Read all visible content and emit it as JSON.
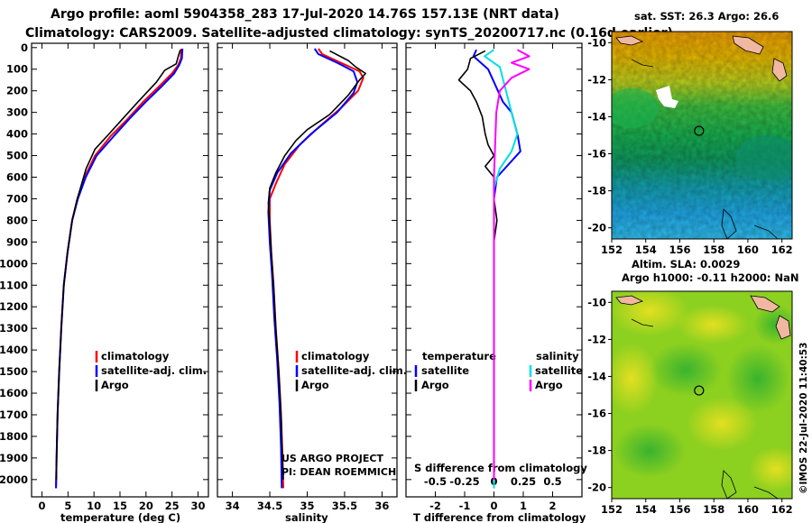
{
  "header": {
    "line1": "Argo profile: aoml 5904358_283 17-Jul-2020 14.76S 157.13E (NRT data)",
    "line2": "Climatology: CARS2009. Satellite-adjusted climatology: synTS_20200717.nc (0.16d earlier)"
  },
  "credits": {
    "project": "US ARGO PROJECT",
    "pi": "PI: DEAN ROEMMICH",
    "stamp": "©IMOS 22-Jul-2020 11:40:53"
  },
  "colors": {
    "climatology": "#ff0000",
    "satellite": "#0000ff",
    "argo": "#000000",
    "temp_satellite": "#0000ff",
    "sal_satellite": "#00e0e0",
    "sal_argo": "#ff00ff"
  },
  "chart_data": [
    {
      "type": "line",
      "title": "",
      "xlabel": "temperature (deg C)",
      "ylabel": "",
      "xlim": [
        -2,
        32
      ],
      "ylim": [
        2080,
        -20
      ],
      "xticks": [
        0,
        5,
        10,
        15,
        20,
        25,
        30
      ],
      "yticks": [
        0,
        100,
        200,
        300,
        400,
        500,
        600,
        700,
        800,
        900,
        1000,
        1100,
        1200,
        1300,
        1400,
        1500,
        1600,
        1700,
        1800,
        1900,
        2000
      ],
      "legend": [
        "climatology",
        "satellite-adj. clim.",
        "Argo"
      ],
      "series": [
        {
          "name": "climatology",
          "color": "#ff0000",
          "points": [
            [
              26.8,
              5
            ],
            [
              26.7,
              50
            ],
            [
              26.2,
              80
            ],
            [
              25.0,
              120
            ],
            [
              22.5,
              180
            ],
            [
              19.5,
              250
            ],
            [
              16.5,
              330
            ],
            [
              13.2,
              410
            ],
            [
              10.2,
              500
            ],
            [
              8.2,
              600
            ],
            [
              6.8,
              700
            ],
            [
              5.8,
              800
            ],
            [
              4.9,
              950
            ],
            [
              4.2,
              1100
            ],
            [
              3.7,
              1300
            ],
            [
              3.3,
              1500
            ],
            [
              3.0,
              1700
            ],
            [
              2.8,
              1900
            ],
            [
              2.7,
              2040
            ]
          ]
        },
        {
          "name": "satellite-adj. clim.",
          "color": "#0000ff",
          "points": [
            [
              27.0,
              5
            ],
            [
              26.9,
              50
            ],
            [
              26.4,
              80
            ],
            [
              25.4,
              120
            ],
            [
              23.0,
              180
            ],
            [
              20.0,
              250
            ],
            [
              16.8,
              330
            ],
            [
              13.8,
              410
            ],
            [
              10.5,
              500
            ],
            [
              8.4,
              600
            ],
            [
              6.9,
              700
            ],
            [
              5.8,
              800
            ],
            [
              4.9,
              950
            ],
            [
              4.2,
              1100
            ],
            [
              3.7,
              1300
            ],
            [
              3.3,
              1500
            ],
            [
              3.0,
              1700
            ],
            [
              2.8,
              1900
            ],
            [
              2.7,
              2040
            ]
          ]
        },
        {
          "name": "Argo",
          "color": "#000000",
          "points": [
            [
              26.6,
              10
            ],
            [
              26.2,
              40
            ],
            [
              25.8,
              75
            ],
            [
              23.6,
              105
            ],
            [
              22.0,
              160
            ],
            [
              18.5,
              250
            ],
            [
              15.5,
              330
            ],
            [
              12.5,
              410
            ],
            [
              10.2,
              470
            ],
            [
              8.5,
              560
            ],
            [
              6.8,
              700
            ],
            [
              5.8,
              800
            ],
            [
              4.9,
              950
            ],
            [
              4.2,
              1100
            ],
            [
              3.7,
              1300
            ],
            [
              3.3,
              1500
            ],
            [
              3.0,
              1700
            ],
            [
              2.8,
              1900
            ],
            [
              2.75,
              2000
            ]
          ]
        }
      ]
    },
    {
      "type": "line",
      "title": "",
      "xlabel": "salinity",
      "ylabel": "",
      "xlim": [
        33.8,
        36.2
      ],
      "ylim": [
        2080,
        -20
      ],
      "xticks": [
        34,
        34.5,
        35,
        35.5,
        36
      ],
      "xtick_labels": [
        "34",
        "34.5",
        "35",
        "35.5",
        "36"
      ],
      "legend": [
        "climatology",
        "satellite-adj. clim.",
        "Argo"
      ],
      "series": [
        {
          "name": "climatology",
          "color": "#ff0000",
          "points": [
            [
              35.15,
              5
            ],
            [
              35.2,
              30
            ],
            [
              35.45,
              70
            ],
            [
              35.7,
              110
            ],
            [
              35.75,
              140
            ],
            [
              35.68,
              200
            ],
            [
              35.45,
              280
            ],
            [
              35.15,
              370
            ],
            [
              34.9,
              450
            ],
            [
              34.7,
              540
            ],
            [
              34.58,
              630
            ],
            [
              34.5,
              700
            ],
            [
              34.5,
              800
            ],
            [
              34.52,
              950
            ],
            [
              34.55,
              1100
            ],
            [
              34.58,
              1300
            ],
            [
              34.62,
              1500
            ],
            [
              34.65,
              1700
            ],
            [
              34.67,
              1900
            ],
            [
              34.68,
              2040
            ]
          ]
        },
        {
          "name": "satellite-adj. clim.",
          "color": "#0000ff",
          "points": [
            [
              35.1,
              5
            ],
            [
              35.15,
              30
            ],
            [
              35.4,
              70
            ],
            [
              35.62,
              110
            ],
            [
              35.67,
              160
            ],
            [
              35.62,
              210
            ],
            [
              35.4,
              300
            ],
            [
              35.05,
              400
            ],
            [
              34.78,
              490
            ],
            [
              34.6,
              580
            ],
            [
              34.5,
              660
            ],
            [
              34.48,
              760
            ],
            [
              34.5,
              900
            ],
            [
              34.53,
              1050
            ],
            [
              34.56,
              1250
            ],
            [
              34.6,
              1450
            ],
            [
              34.63,
              1650
            ],
            [
              34.65,
              1850
            ],
            [
              34.66,
              2040
            ]
          ]
        },
        {
          "name": "Argo",
          "color": "#000000",
          "points": [
            [
              35.3,
              15
            ],
            [
              35.55,
              60
            ],
            [
              35.65,
              90
            ],
            [
              35.78,
              120
            ],
            [
              35.7,
              150
            ],
            [
              35.55,
              220
            ],
            [
              35.3,
              310
            ],
            [
              35.0,
              380
            ],
            [
              34.85,
              430
            ],
            [
              34.7,
              500
            ],
            [
              34.58,
              580
            ],
            [
              34.5,
              650
            ],
            [
              34.48,
              720
            ],
            [
              34.5,
              820
            ],
            [
              34.52,
              950
            ],
            [
              34.55,
              1100
            ],
            [
              34.58,
              1300
            ],
            [
              34.62,
              1500
            ],
            [
              34.65,
              1700
            ],
            [
              34.67,
              1900
            ],
            [
              34.68,
              2000
            ]
          ]
        }
      ]
    },
    {
      "type": "line",
      "title": "",
      "xlabel": "T difference from climatology",
      "xlabel_top": "S difference from climatology",
      "ylabel": "",
      "xlim": [
        -3,
        3
      ],
      "xlim_top": [
        -0.75,
        0.75
      ],
      "ylim": [
        2080,
        -20
      ],
      "xticks": [
        -2,
        -1,
        0,
        1,
        2
      ],
      "xticks_top": [
        -0.5,
        -0.25,
        0,
        0.25,
        0.5
      ],
      "legend_temperature_title": "temperature",
      "legend_salinity_title": "salinity",
      "legend": [
        "satellite",
        "Argo",
        "satellite",
        "Argo"
      ],
      "series": [
        {
          "name": "temperature satellite",
          "color": "#0000ff",
          "axis": "T",
          "points": [
            [
              -0.6,
              10
            ],
            [
              -0.7,
              40
            ],
            [
              -0.2,
              100
            ],
            [
              0.3,
              250
            ],
            [
              0.6,
              300
            ],
            [
              0.8,
              400
            ],
            [
              0.9,
              480
            ],
            [
              0.1,
              600
            ],
            [
              0.0,
              700
            ],
            [
              0.0,
              900
            ],
            [
              0.0,
              1200
            ],
            [
              0.0,
              1600
            ],
            [
              0.0,
              2040
            ]
          ]
        },
        {
          "name": "temperature Argo",
          "color": "#000000",
          "axis": "T",
          "points": [
            [
              -0.3,
              15
            ],
            [
              -0.8,
              50
            ],
            [
              -0.9,
              100
            ],
            [
              -1.2,
              150
            ],
            [
              -0.8,
              200
            ],
            [
              -0.6,
              250
            ],
            [
              -0.4,
              320
            ],
            [
              -0.3,
              400
            ],
            [
              -0.2,
              450
            ],
            [
              0.0,
              500
            ],
            [
              -0.3,
              550
            ],
            [
              0.0,
              600
            ],
            [
              0.0,
              700
            ],
            [
              0.1,
              800
            ],
            [
              0.0,
              900
            ],
            [
              0.0,
              1200
            ],
            [
              0.0,
              1600
            ],
            [
              0.0,
              2000
            ]
          ]
        },
        {
          "name": "salinity satellite",
          "color": "#00e0e0",
          "axis": "S",
          "points": [
            [
              0.0,
              10
            ],
            [
              -0.08,
              40
            ],
            [
              0.05,
              90
            ],
            [
              0.15,
              300
            ],
            [
              0.2,
              400
            ],
            [
              0.15,
              480
            ],
            [
              0.05,
              560
            ],
            [
              0.0,
              650
            ],
            [
              0.0,
              900
            ],
            [
              0.0,
              1400
            ],
            [
              0.0,
              2040
            ]
          ]
        },
        {
          "name": "salinity Argo",
          "color": "#ff00ff",
          "axis": "S",
          "points": [
            [
              0.2,
              10
            ],
            [
              0.3,
              40
            ],
            [
              0.15,
              70
            ],
            [
              0.3,
              100
            ],
            [
              0.15,
              140
            ],
            [
              0.05,
              200
            ],
            [
              0.02,
              300
            ],
            [
              0.01,
              450
            ],
            [
              0.0,
              600
            ],
            [
              0.0,
              800
            ],
            [
              0.0,
              1200
            ],
            [
              0.0,
              1600
            ],
            [
              0.0,
              2000
            ]
          ]
        }
      ]
    },
    {
      "type": "heatmap",
      "title": "sat. SST: 26.3 Argo: 26.6",
      "xlabel": "",
      "ylabel": "",
      "xlim": [
        152,
        162.6
      ],
      "ylim": [
        -20.6,
        -9.4
      ],
      "xticks": [
        152,
        154,
        156,
        158,
        160,
        162
      ],
      "yticks": [
        -10,
        -12,
        -14,
        -16,
        -18,
        -20
      ],
      "marker": {
        "lon": 157.13,
        "lat": -14.76
      }
    },
    {
      "type": "heatmap",
      "title": "Altim. SLA: 0.0029",
      "subtitle": "Argo h1000: -0.11 h2000: NaN",
      "xlabel": "",
      "ylabel": "",
      "xlim": [
        152,
        162.6
      ],
      "ylim": [
        -20.6,
        -9.4
      ],
      "xticks": [
        152,
        154,
        156,
        158,
        160,
        162
      ],
      "yticks": [
        -10,
        -12,
        -14,
        -16,
        -18,
        -20
      ],
      "marker": {
        "lon": 157.13,
        "lat": -14.76
      }
    }
  ]
}
